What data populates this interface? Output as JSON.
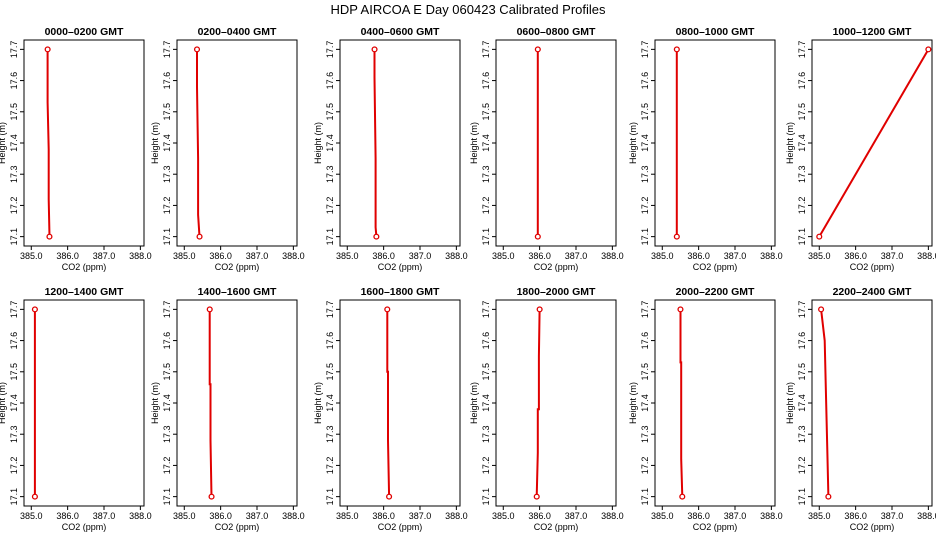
{
  "title": "HDP  AIRCOA E  Day 060423  Calibrated Profiles",
  "colors": {
    "profile_line": "#e00000",
    "marker": "#e00000",
    "axes": "#000000"
  },
  "chart_data": [
    {
      "type": "line",
      "title": "0000–0200 GMT",
      "xlabel": "CO2 (ppm)",
      "ylabel": "Height (m)",
      "xlim": [
        384.8,
        388.1
      ],
      "ylim": [
        17.07,
        17.73
      ],
      "xticks": [
        "385.0",
        "386.0",
        "387.0",
        "388.0"
      ],
      "yticks": [
        "17.1",
        "17.2",
        "17.3",
        "17.4",
        "17.5",
        "17.6",
        "17.7"
      ],
      "grid": false,
      "series": [
        {
          "x": [
            385.45,
            385.45,
            385.48,
            385.48,
            385.5
          ],
          "y": [
            17.7,
            17.53,
            17.38,
            17.22,
            17.1
          ]
        }
      ]
    },
    {
      "type": "line",
      "title": "0200–0400 GMT",
      "xlabel": "CO2 (ppm)",
      "ylabel": "Height (m)",
      "xlim": [
        384.8,
        388.1
      ],
      "ylim": [
        17.07,
        17.73
      ],
      "xticks": [
        "385.0",
        "386.0",
        "387.0",
        "388.0"
      ],
      "yticks": [
        "17.1",
        "17.2",
        "17.3",
        "17.4",
        "17.5",
        "17.6",
        "17.7"
      ],
      "grid": false,
      "series": [
        {
          "x": [
            385.35,
            385.35,
            385.38,
            385.38,
            385.42
          ],
          "y": [
            17.7,
            17.58,
            17.35,
            17.17,
            17.1
          ]
        }
      ]
    },
    {
      "type": "line",
      "title": "0400–0600 GMT",
      "xlabel": "CO2 (ppm)",
      "ylabel": "Height (m)",
      "xlim": [
        384.8,
        388.1
      ],
      "ylim": [
        17.07,
        17.73
      ],
      "xticks": [
        "385.0",
        "386.0",
        "387.0",
        "388.0"
      ],
      "yticks": [
        "17.1",
        "17.2",
        "17.3",
        "17.4",
        "17.5",
        "17.6",
        "17.7"
      ],
      "grid": false,
      "series": [
        {
          "x": [
            385.75,
            385.75,
            385.78,
            385.78,
            385.8
          ],
          "y": [
            17.7,
            17.61,
            17.35,
            17.13,
            17.1
          ]
        }
      ]
    },
    {
      "type": "line",
      "title": "0600–0800 GMT",
      "xlabel": "CO2 (ppm)",
      "ylabel": "Height (m)",
      "xlim": [
        384.8,
        388.1
      ],
      "ylim": [
        17.07,
        17.73
      ],
      "xticks": [
        "385.0",
        "386.0",
        "387.0",
        "388.0"
      ],
      "yticks": [
        "17.1",
        "17.2",
        "17.3",
        "17.4",
        "17.5",
        "17.6",
        "17.7"
      ],
      "grid": false,
      "series": [
        {
          "x": [
            385.95,
            385.95,
            385.95,
            385.95
          ],
          "y": [
            17.7,
            17.5,
            17.3,
            17.1
          ]
        }
      ]
    },
    {
      "type": "line",
      "title": "0800–1000 GMT",
      "xlabel": "CO2 (ppm)",
      "ylabel": "Height (m)",
      "xlim": [
        384.8,
        388.1
      ],
      "ylim": [
        17.07,
        17.73
      ],
      "xticks": [
        "385.0",
        "386.0",
        "387.0",
        "388.0"
      ],
      "yticks": [
        "17.1",
        "17.2",
        "17.3",
        "17.4",
        "17.5",
        "17.6",
        "17.7"
      ],
      "grid": false,
      "series": [
        {
          "x": [
            385.4,
            385.4,
            385.4
          ],
          "y": [
            17.7,
            17.4,
            17.1
          ]
        }
      ]
    },
    {
      "type": "line",
      "title": "1000–1200 GMT",
      "xlabel": "CO2 (ppm)",
      "ylabel": "Height (m)",
      "xlim": [
        384.8,
        388.1
      ],
      "ylim": [
        17.07,
        17.73
      ],
      "xticks": [
        "385.0",
        "386.0",
        "387.0",
        "388.0"
      ],
      "yticks": [
        "17.1",
        "17.2",
        "17.3",
        "17.4",
        "17.5",
        "17.6",
        "17.7"
      ],
      "grid": false,
      "series": [
        {
          "x": [
            388.0,
            385.0
          ],
          "y": [
            17.7,
            17.1
          ]
        }
      ]
    },
    {
      "type": "line",
      "title": "1200–1400 GMT",
      "xlabel": "CO2 (ppm)",
      "ylabel": "Height (m)",
      "xlim": [
        384.8,
        388.1
      ],
      "ylim": [
        17.07,
        17.73
      ],
      "xticks": [
        "385.0",
        "386.0",
        "387.0",
        "388.0"
      ],
      "yticks": [
        "17.1",
        "17.2",
        "17.3",
        "17.4",
        "17.5",
        "17.6",
        "17.7"
      ],
      "grid": false,
      "series": [
        {
          "x": [
            385.1,
            385.1,
            385.1
          ],
          "y": [
            17.7,
            17.4,
            17.1
          ]
        }
      ]
    },
    {
      "type": "line",
      "title": "1400–1600 GMT",
      "xlabel": "CO2 (ppm)",
      "ylabel": "Height (m)",
      "xlim": [
        384.8,
        388.1
      ],
      "ylim": [
        17.07,
        17.73
      ],
      "xticks": [
        "385.0",
        "386.0",
        "387.0",
        "388.0"
      ],
      "yticks": [
        "17.1",
        "17.2",
        "17.3",
        "17.4",
        "17.5",
        "17.6",
        "17.7"
      ],
      "grid": false,
      "series": [
        {
          "x": [
            385.7,
            385.7,
            385.72,
            385.72,
            385.75
          ],
          "y": [
            17.7,
            17.46,
            17.46,
            17.28,
            17.1
          ]
        }
      ]
    },
    {
      "type": "line",
      "title": "1600–1800 GMT",
      "xlabel": "CO2 (ppm)",
      "ylabel": "Height (m)",
      "xlim": [
        384.8,
        388.1
      ],
      "ylim": [
        17.07,
        17.73
      ],
      "xticks": [
        "385.0",
        "386.0",
        "387.0",
        "388.0"
      ],
      "yticks": [
        "17.1",
        "17.2",
        "17.3",
        "17.4",
        "17.5",
        "17.6",
        "17.7"
      ],
      "grid": false,
      "series": [
        {
          "x": [
            386.1,
            386.1,
            386.12,
            386.12,
            386.15
          ],
          "y": [
            17.7,
            17.5,
            17.5,
            17.28,
            17.1
          ]
        }
      ]
    },
    {
      "type": "line",
      "title": "1800–2000 GMT",
      "xlabel": "CO2 (ppm)",
      "ylabel": "Height (m)",
      "xlim": [
        384.8,
        388.1
      ],
      "ylim": [
        17.07,
        17.73
      ],
      "xticks": [
        "385.0",
        "386.0",
        "387.0",
        "388.0"
      ],
      "yticks": [
        "17.1",
        "17.2",
        "17.3",
        "17.4",
        "17.5",
        "17.6",
        "17.7"
      ],
      "grid": false,
      "series": [
        {
          "x": [
            386.0,
            385.98,
            385.98,
            385.95,
            385.95,
            385.92
          ],
          "y": [
            17.7,
            17.55,
            17.38,
            17.38,
            17.24,
            17.1
          ]
        }
      ]
    },
    {
      "type": "line",
      "title": "2000–2200 GMT",
      "xlabel": "CO2 (ppm)",
      "ylabel": "Height (m)",
      "xlim": [
        384.8,
        388.1
      ],
      "ylim": [
        17.07,
        17.73
      ],
      "xticks": [
        "385.0",
        "386.0",
        "387.0",
        "388.0"
      ],
      "yticks": [
        "17.1",
        "17.2",
        "17.3",
        "17.4",
        "17.5",
        "17.6",
        "17.7"
      ],
      "grid": false,
      "series": [
        {
          "x": [
            385.5,
            385.5,
            385.52,
            385.52,
            385.55
          ],
          "y": [
            17.7,
            17.53,
            17.53,
            17.22,
            17.1
          ]
        }
      ]
    },
    {
      "type": "line",
      "title": "2200–2400 GMT",
      "xlabel": "CO2 (ppm)",
      "ylabel": "Height (m)",
      "xlim": [
        384.8,
        388.1
      ],
      "ylim": [
        17.07,
        17.73
      ],
      "xticks": [
        "385.0",
        "386.0",
        "387.0",
        "388.0"
      ],
      "yticks": [
        "17.1",
        "17.2",
        "17.3",
        "17.4",
        "17.5",
        "17.6",
        "17.7"
      ],
      "grid": false,
      "series": [
        {
          "x": [
            385.05,
            385.15,
            385.18,
            385.22,
            385.25
          ],
          "y": [
            17.7,
            17.6,
            17.45,
            17.25,
            17.1
          ]
        }
      ]
    }
  ]
}
